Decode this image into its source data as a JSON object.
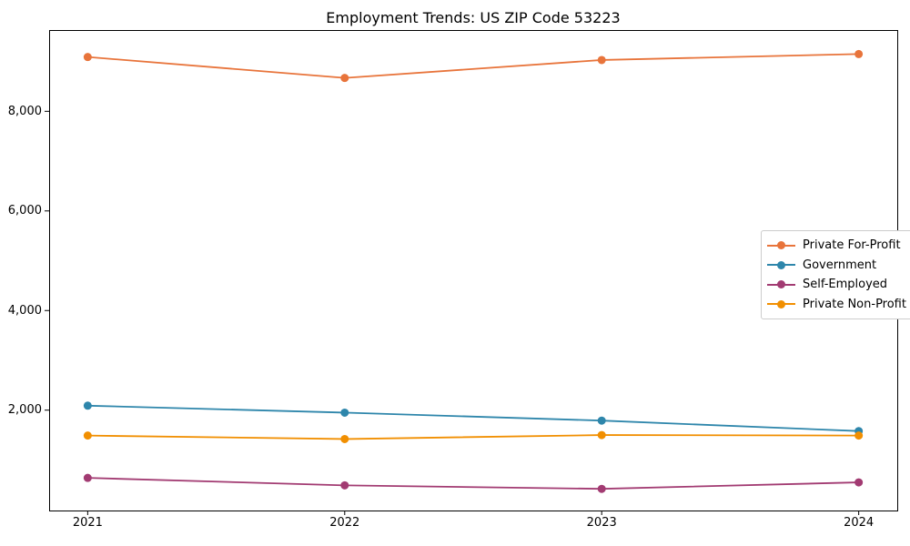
{
  "chart_data": {
    "type": "line",
    "title": "Employment Trends: US ZIP Code 53223",
    "x": [
      2021,
      2022,
      2023,
      2024
    ],
    "x_labels": [
      "2021",
      "2022",
      "2023",
      "2024"
    ],
    "series": [
      {
        "name": "Private For-Profit",
        "color": "#E8743B",
        "values": [
          9090,
          8670,
          9030,
          9150
        ]
      },
      {
        "name": "Government",
        "color": "#2E86AB",
        "values": [
          2090,
          1950,
          1790,
          1580
        ]
      },
      {
        "name": "Self-Employed",
        "color": "#A23B72",
        "values": [
          640,
          490,
          420,
          550
        ]
      },
      {
        "name": "Private Non-Profit",
        "color": "#F18F01",
        "values": [
          1490,
          1420,
          1500,
          1490
        ]
      }
    ],
    "yticks": [
      2000,
      4000,
      6000,
      8000
    ],
    "ytick_labels": [
      "2,000",
      "4,000",
      "6,000",
      "8,000"
    ],
    "xlim": [
      2020.85,
      2024.15
    ],
    "ylim": [
      -15,
      9632
    ],
    "grid": false,
    "legend_position": "center right",
    "marker": "circle",
    "axis_color": "#000000"
  }
}
